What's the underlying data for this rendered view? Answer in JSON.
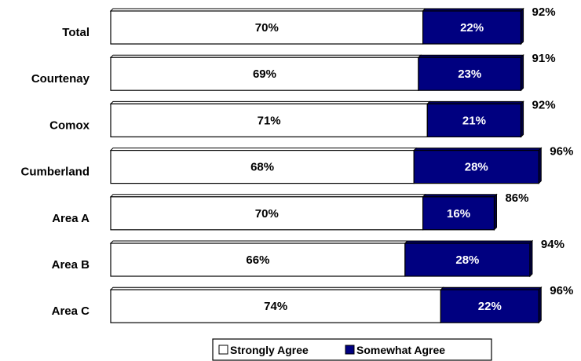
{
  "chart_data": {
    "type": "bar",
    "orientation": "horizontal",
    "stacked": true,
    "categories": [
      "Total",
      "Courtenay",
      "Comox",
      "Cumberland",
      "Area A",
      "Area B",
      "Area C"
    ],
    "series": [
      {
        "name": "Strongly Agree",
        "values": [
          70,
          69,
          71,
          68,
          70,
          66,
          74
        ],
        "labels": [
          "70%",
          "69%",
          "71%",
          "68%",
          "70%",
          "66%",
          "74%"
        ],
        "color": "#ffffff",
        "text_color": "#000000"
      },
      {
        "name": "Somewhat Agree",
        "values": [
          22,
          23,
          21,
          28,
          16,
          28,
          22
        ],
        "labels": [
          "22%",
          "23%",
          "21%",
          "28%",
          "16%",
          "28%",
          "22%"
        ],
        "color": "#000080",
        "text_color": "#ffffff"
      }
    ],
    "totals": [
      "92%",
      "91%",
      "92%",
      "96%",
      "86%",
      "94%",
      "96%"
    ],
    "xlim": [
      0,
      100
    ],
    "grid": false,
    "legend_position": "bottom",
    "title": "",
    "xlabel": "",
    "ylabel": ""
  }
}
